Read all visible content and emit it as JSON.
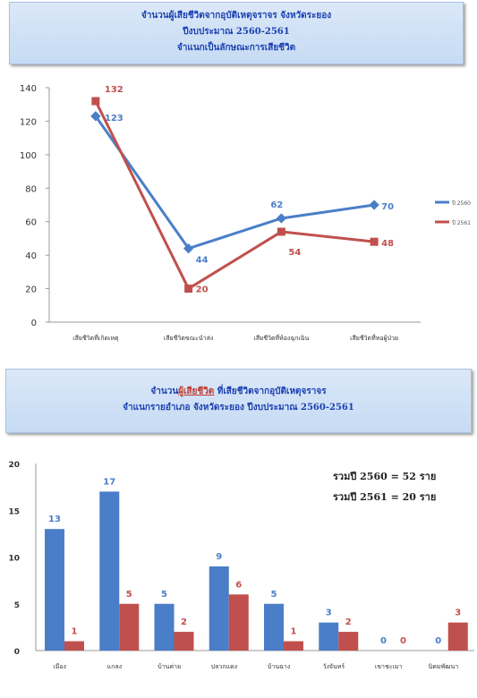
{
  "banner1": {
    "line1": "จำนวนผู้เสียชีวิตจากอุบัติเหตุจราจร จังหวัดระยอง",
    "line2": "ปีงบประมาณ 2560-2561",
    "line3": "จำแนกเป็นลักษณะการเสียชีวิต"
  },
  "banner2": {
    "line1_pre": "จำนวน",
    "line1_highlight": "ผู้เสียชีวิต",
    "line1_post": " ที่เสียชีวิตจากอุบัติเหตุจราจร",
    "line2": "จำแนกรายอำเภอ จังหวัดระยอง ปีงบประมาณ 2560-2561"
  },
  "colors": {
    "blue": "#4a7ec8",
    "red": "#c0504d",
    "banner_text": "#1a3fb0"
  },
  "chart_data": [
    {
      "type": "line",
      "categories": [
        "เสียชีวิตที่เกิดเหตุ",
        "เสียชีวิตขณะนำส่ง",
        "เสียชีวิตที่ห้องฉุกเฉิน",
        "เสียชีวิตที่หอผู้ป่วย"
      ],
      "series": [
        {
          "name": "ปี 2560",
          "values": [
            123,
            44,
            62,
            70
          ],
          "color": "#4a7ec8"
        },
        {
          "name": "ปี 2561",
          "values": [
            132,
            20,
            54,
            48
          ],
          "color": "#c0504d"
        }
      ],
      "ylim": [
        0,
        140
      ],
      "yticks": [
        0,
        20,
        40,
        60,
        80,
        100,
        120,
        140
      ],
      "legend": "right"
    },
    {
      "type": "bar",
      "categories": [
        "เมือง",
        "แกลง",
        "บ้านค่าย",
        "ปลวกแดง",
        "บ้านฉาง",
        "วังจันทร์",
        "เขาชะเมา",
        "นิคมพัฒนา"
      ],
      "series": [
        {
          "name": "ปี 2560",
          "values": [
            13,
            17,
            5,
            9,
            5,
            3,
            0,
            0
          ],
          "color": "#4a7ec8"
        },
        {
          "name": "ปี 2561",
          "values": [
            1,
            5,
            2,
            6,
            1,
            2,
            0,
            3
          ],
          "color": "#c0504d"
        }
      ],
      "ylim": [
        0,
        20
      ],
      "yticks": [
        0,
        5,
        10,
        15,
        20
      ],
      "notes": [
        "รวมปี 2560 = 52 ราย",
        "รวมปี 2561 = 20 ราย"
      ]
    }
  ]
}
